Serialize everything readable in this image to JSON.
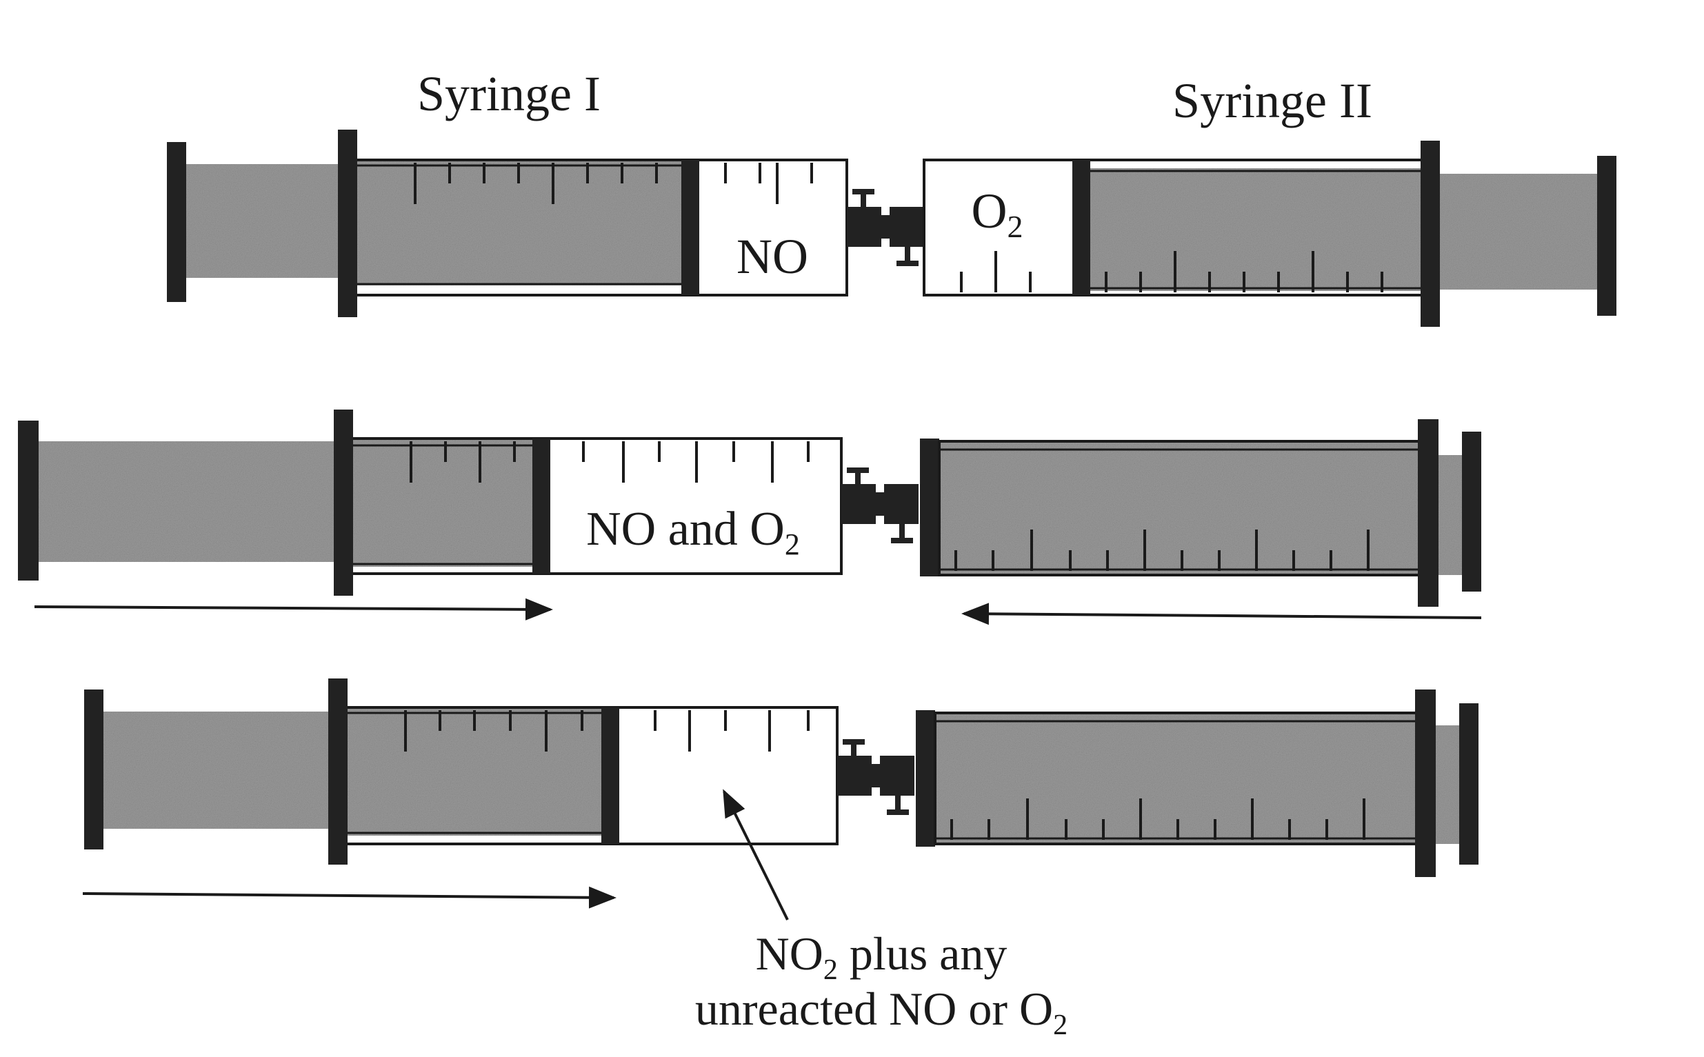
{
  "labels": {
    "syringe_1": "Syringe I",
    "syringe_2": "Syringe II",
    "row1_left_gas": "NO",
    "row1_right_gas_base": "O",
    "row1_right_gas_sub": "2",
    "row2_gas_base": "NO and O",
    "row2_gas_sub": "2",
    "row3_line1_base": "NO",
    "row3_line1_sub": "2",
    "row3_line1_rest": " plus any",
    "row3_line2_base": "unreacted NO or O",
    "row3_line2_sub": "2"
  },
  "colors": {
    "ink": "#1a1a1a",
    "plunger_fill": "#9a9a9a",
    "paper": "#ffffff"
  }
}
